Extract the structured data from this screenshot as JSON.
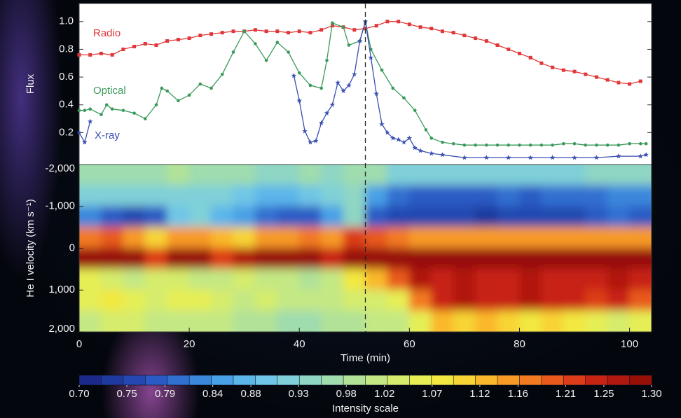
{
  "chart_data": [
    {
      "type": "line",
      "ylabel": "Flux",
      "xlim": [
        0,
        104
      ],
      "ylim": [
        -0.03,
        1.13
      ],
      "yticks": [
        0.2,
        0.4,
        0.6,
        0.8,
        {
          "value": 1,
          "label": "1.0"
        }
      ],
      "vline": 52,
      "series": [
        {
          "name": "Radio",
          "color": "#e0383a",
          "marker": "square",
          "x": [
            0,
            2,
            4,
            6,
            8,
            10,
            12,
            14,
            16,
            18,
            20,
            22,
            24,
            26,
            28,
            30,
            32,
            34,
            36,
            38,
            40,
            42,
            44,
            46,
            48,
            50,
            52,
            54,
            56,
            58,
            60,
            62,
            64,
            66,
            68,
            70,
            72,
            74,
            76,
            78,
            80,
            82,
            84,
            86,
            88,
            90,
            92,
            94,
            96,
            98,
            100,
            102
          ],
          "values": [
            0.76,
            0.76,
            0.77,
            0.76,
            0.8,
            0.82,
            0.84,
            0.83,
            0.86,
            0.87,
            0.88,
            0.9,
            0.91,
            0.92,
            0.93,
            0.93,
            0.94,
            0.93,
            0.93,
            0.92,
            0.93,
            0.92,
            0.94,
            0.97,
            0.96,
            0.94,
            0.95,
            0.97,
            1.0,
            1.0,
            0.98,
            0.96,
            0.95,
            0.93,
            0.92,
            0.9,
            0.88,
            0.86,
            0.83,
            0.8,
            0.77,
            0.74,
            0.7,
            0.67,
            0.65,
            0.64,
            0.62,
            0.6,
            0.58,
            0.56,
            0.55,
            0.57
          ]
        },
        {
          "name": "Optical",
          "color": "#3a9a5a",
          "marker": "circle",
          "x": [
            0,
            1,
            2,
            4,
            5,
            6,
            8,
            10,
            12,
            14,
            15,
            16,
            18,
            20,
            22,
            24,
            26,
            28,
            30,
            32,
            34,
            36,
            38,
            40,
            42,
            44,
            45,
            46,
            48,
            49,
            51,
            52,
            53,
            55,
            57,
            59,
            61,
            63,
            64,
            66,
            68,
            70,
            72,
            74,
            76,
            78,
            80,
            82,
            84,
            86,
            88,
            90,
            92,
            94,
            96,
            98,
            100,
            102,
            103
          ],
          "values": [
            0.36,
            0.36,
            0.37,
            0.33,
            0.4,
            0.37,
            0.36,
            0.34,
            0.3,
            0.4,
            0.52,
            0.5,
            0.43,
            0.47,
            0.55,
            0.52,
            0.62,
            0.78,
            0.93,
            0.84,
            0.72,
            0.85,
            0.78,
            0.63,
            0.54,
            0.52,
            0.72,
            0.99,
            0.96,
            0.83,
            0.86,
            1.0,
            0.8,
            0.65,
            0.52,
            0.45,
            0.36,
            0.22,
            0.16,
            0.13,
            0.12,
            0.11,
            0.11,
            0.11,
            0.11,
            0.11,
            0.11,
            0.11,
            0.11,
            0.11,
            0.12,
            0.12,
            0.11,
            0.11,
            0.11,
            0.11,
            0.12,
            0.12,
            0.12
          ]
        },
        {
          "name": "X-ray",
          "color": "#3a4fb0",
          "marker": "star",
          "x": [
            0,
            1,
            2,
            20,
            39,
            40,
            41,
            42,
            43,
            44,
            45,
            46,
            47,
            48,
            49,
            50,
            51,
            52,
            53,
            54,
            55,
            56,
            57,
            58,
            59,
            60,
            61,
            62,
            64,
            66,
            70,
            74,
            78,
            82,
            86,
            90,
            94,
            98,
            102,
            103
          ],
          "values": [
            0.2,
            0.13,
            0.28,
            null,
            0.61,
            0.43,
            0.21,
            0.13,
            0.14,
            0.27,
            0.34,
            0.4,
            0.56,
            0.5,
            0.54,
            0.62,
            0.86,
            1.0,
            0.74,
            0.48,
            0.26,
            0.2,
            0.16,
            0.15,
            0.13,
            0.16,
            0.09,
            0.07,
            0.05,
            0.04,
            0.02,
            0.02,
            0.02,
            0.02,
            0.02,
            0.02,
            0.02,
            0.03,
            0.03,
            0.04
          ]
        }
      ]
    },
    {
      "type": "heatmap",
      "xlabel": "Time (min)",
      "ylabel": "He I velocity (km s⁻¹)",
      "xlim": [
        0,
        104
      ],
      "ylim": [
        -2000,
        2000
      ],
      "y_inverted": true,
      "xticks": [
        0,
        20,
        40,
        60,
        80,
        100
      ],
      "yticks": [
        {
          "value": -2000,
          "label": "-2,000"
        },
        {
          "value": -1000,
          "label": "-1,000"
        },
        0,
        {
          "value": 1000,
          "label": "1,000"
        },
        {
          "value": 2000,
          "label": "2,000"
        }
      ],
      "x": [
        2,
        6,
        10,
        14,
        18,
        22,
        26,
        30,
        34,
        38,
        42,
        46,
        50,
        54,
        58,
        62,
        66,
        70,
        74,
        78,
        82,
        86,
        90,
        94,
        98,
        102
      ],
      "y": [
        -1750,
        -1250,
        -750,
        -250,
        250,
        750,
        1250,
        1750
      ],
      "z": [
        [
          0.97,
          0.97,
          0.96,
          0.97,
          0.98,
          0.97,
          0.96,
          0.97,
          0.95,
          0.95,
          0.96,
          0.95,
          0.96,
          0.97,
          0.93,
          0.93,
          0.92,
          0.92,
          0.93,
          0.92,
          0.93,
          0.92,
          0.93,
          0.94,
          0.95,
          0.95
        ],
        [
          0.92,
          0.91,
          0.92,
          0.93,
          0.92,
          0.93,
          0.93,
          0.9,
          0.88,
          0.87,
          0.9,
          0.92,
          0.95,
          0.85,
          0.8,
          0.79,
          0.78,
          0.78,
          0.79,
          0.8,
          0.79,
          0.8,
          0.8,
          0.8,
          0.82,
          0.83
        ],
        [
          0.82,
          0.78,
          0.76,
          0.78,
          0.9,
          0.92,
          0.88,
          0.86,
          0.8,
          0.78,
          0.79,
          0.85,
          0.95,
          0.78,
          0.76,
          0.75,
          0.75,
          0.75,
          0.74,
          0.75,
          0.75,
          0.76,
          0.76,
          0.78,
          0.8,
          0.78
        ],
        [
          1.18,
          1.2,
          1.15,
          1.1,
          1.14,
          1.16,
          1.12,
          1.1,
          1.15,
          1.16,
          1.17,
          1.16,
          1.22,
          1.2,
          1.18,
          1.16,
          1.15,
          1.16,
          1.15,
          1.15,
          1.14,
          1.15,
          1.14,
          1.15,
          1.16,
          1.15
        ],
        [
          1.29,
          1.29,
          1.28,
          1.22,
          1.29,
          1.28,
          1.23,
          1.27,
          1.29,
          1.29,
          1.28,
          1.24,
          1.28,
          1.29,
          1.29,
          1.29,
          1.29,
          1.29,
          1.29,
          1.29,
          1.29,
          1.29,
          1.29,
          1.29,
          1.29,
          1.29
        ],
        [
          1.05,
          1.04,
          1.02,
          1.03,
          1.04,
          1.02,
          1.02,
          1.03,
          1.02,
          1.0,
          0.98,
          1.02,
          1.08,
          1.12,
          1.2,
          1.26,
          1.25,
          1.26,
          1.24,
          1.25,
          1.26,
          1.25,
          1.24,
          1.25,
          1.26,
          1.24
        ],
        [
          1.05,
          1.07,
          1.06,
          1.04,
          1.05,
          1.06,
          1.03,
          1.02,
          1.03,
          1.02,
          1.0,
          1.01,
          1.03,
          1.04,
          1.05,
          1.18,
          1.24,
          1.26,
          1.25,
          1.24,
          1.26,
          1.25,
          1.24,
          1.22,
          1.24,
          1.2
        ],
        [
          1.0,
          1.03,
          1.04,
          1.02,
          1.0,
          1.02,
          1.0,
          0.99,
          0.98,
          0.97,
          0.97,
          0.98,
          0.99,
          1.0,
          1.02,
          1.06,
          1.12,
          1.1,
          1.12,
          1.1,
          1.08,
          1.1,
          1.08,
          1.06,
          1.04,
          1.06
        ]
      ]
    },
    {
      "type": "colorbar",
      "label": "Intensity scale",
      "clim": [
        0.7,
        1.3
      ],
      "colors": [
        "#1b2a8a",
        "#1f3a9e",
        "#2448b0",
        "#2a5bc4",
        "#3070d0",
        "#3a87dc",
        "#48a0e6",
        "#5bb6ea",
        "#6fc6e6",
        "#7fd0d8",
        "#8fd6c4",
        "#9fdcae",
        "#b1e298",
        "#c4e884",
        "#d6ec6c",
        "#e6ee54",
        "#f2e840",
        "#f8d434",
        "#fab82c",
        "#f89a26",
        "#f27a20",
        "#e85a1c",
        "#dc3c18",
        "#c82414",
        "#b01810",
        "#961008"
      ],
      "ticks": [
        {
          "value": 0.7,
          "label": "0.70"
        },
        0.75,
        0.79,
        0.84,
        0.88,
        0.93,
        0.98,
        1.02,
        1.07,
        1.12,
        1.16,
        1.21,
        1.25,
        {
          "value": 1.3,
          "label": "1.30"
        }
      ]
    }
  ]
}
